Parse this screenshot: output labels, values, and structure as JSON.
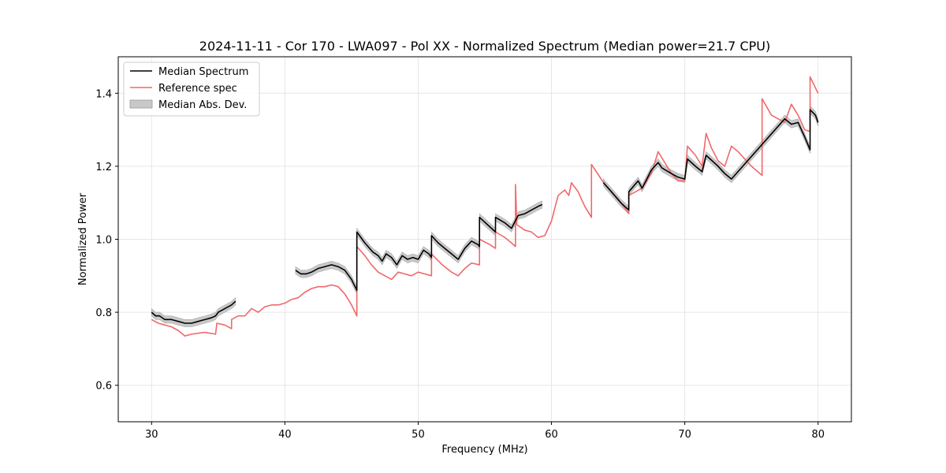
{
  "chart_data": {
    "type": "line",
    "title": "2024-11-11 - Cor 170 - LWA097 - Pol XX - Normalized Spectrum (Median power=21.7 CPU)",
    "xlabel": "Frequency (MHz)",
    "ylabel": "Normalized Power",
    "xlim": [
      27.5,
      82.5
    ],
    "ylim": [
      0.5,
      1.5
    ],
    "xticks": [
      30,
      40,
      50,
      60,
      70,
      80
    ],
    "yticks": [
      0.6,
      0.8,
      1.0,
      1.2,
      1.4
    ],
    "xtick_labels": [
      "30",
      "40",
      "50",
      "60",
      "70",
      "80"
    ],
    "ytick_labels": [
      "0.6",
      "0.8",
      "1.0",
      "1.2",
      "1.4"
    ],
    "grid": true,
    "legend_position": "top-left",
    "legend": [
      {
        "label": "Median Spectrum",
        "kind": "line",
        "color": "#000000"
      },
      {
        "label": "Reference spec",
        "kind": "line",
        "color": "#f0686c"
      },
      {
        "label": "Median Abs. Dev.",
        "kind": "band",
        "color": "#c8c8c8"
      }
    ],
    "series": [
      {
        "name": "Median Spectrum",
        "color": "#000000",
        "band_halfwidth": 0.01,
        "segments": [
          [
            [
              30.0,
              0.8
            ],
            [
              30.3,
              0.79
            ],
            [
              30.6,
              0.79
            ],
            [
              31.0,
              0.78
            ],
            [
              31.5,
              0.78
            ],
            [
              32.0,
              0.775
            ],
            [
              32.5,
              0.77
            ],
            [
              33.0,
              0.77
            ],
            [
              33.5,
              0.775
            ],
            [
              34.0,
              0.78
            ],
            [
              34.5,
              0.785
            ],
            [
              34.8,
              0.79
            ],
            [
              35.0,
              0.8
            ],
            [
              35.5,
              0.81
            ],
            [
              36.0,
              0.82
            ],
            [
              36.3,
              0.83
            ]
          ],
          [
            [
              40.8,
              0.915
            ],
            [
              41.2,
              0.905
            ],
            [
              41.6,
              0.905
            ],
            [
              42.0,
              0.91
            ],
            [
              42.5,
              0.92
            ],
            [
              43.0,
              0.925
            ],
            [
              43.5,
              0.93
            ],
            [
              44.0,
              0.925
            ],
            [
              44.5,
              0.915
            ],
            [
              45.0,
              0.89
            ],
            [
              45.4,
              0.86
            ],
            [
              45.4,
              1.02
            ],
            [
              46.0,
              0.99
            ],
            [
              46.6,
              0.965
            ],
            [
              47.0,
              0.955
            ],
            [
              47.3,
              0.94
            ],
            [
              47.6,
              0.96
            ],
            [
              48.0,
              0.95
            ],
            [
              48.4,
              0.93
            ],
            [
              48.8,
              0.955
            ],
            [
              49.2,
              0.945
            ],
            [
              49.6,
              0.95
            ],
            [
              50.0,
              0.945
            ],
            [
              50.4,
              0.97
            ],
            [
              50.8,
              0.96
            ],
            [
              51.0,
              0.95
            ],
            [
              51.0,
              1.01
            ],
            [
              51.5,
              0.99
            ],
            [
              52.0,
              0.975
            ],
            [
              52.5,
              0.96
            ],
            [
              53.0,
              0.945
            ],
            [
              53.5,
              0.975
            ],
            [
              54.0,
              0.995
            ],
            [
              54.5,
              0.985
            ],
            [
              54.6,
              0.98
            ],
            [
              54.6,
              1.06
            ],
            [
              55.2,
              1.04
            ],
            [
              55.8,
              1.02
            ],
            [
              55.8,
              1.06
            ],
            [
              56.5,
              1.045
            ],
            [
              57.0,
              1.03
            ],
            [
              57.5,
              1.065
            ],
            [
              58.0,
              1.07
            ],
            [
              58.5,
              1.08
            ],
            [
              59.0,
              1.09
            ],
            [
              59.3,
              1.095
            ]
          ],
          [
            [
              63.9,
              1.155
            ],
            [
              64.5,
              1.13
            ],
            [
              65.2,
              1.1
            ],
            [
              65.8,
              1.08
            ],
            [
              65.8,
              1.13
            ],
            [
              66.5,
              1.16
            ],
            [
              66.8,
              1.14
            ],
            [
              67.5,
              1.19
            ],
            [
              68.0,
              1.21
            ],
            [
              68.3,
              1.195
            ],
            [
              69.0,
              1.18
            ],
            [
              69.5,
              1.17
            ],
            [
              70.0,
              1.165
            ],
            [
              70.2,
              1.22
            ],
            [
              70.8,
              1.2
            ],
            [
              71.3,
              1.185
            ],
            [
              71.6,
              1.23
            ],
            [
              72.5,
              1.2
            ],
            [
              73.0,
              1.18
            ],
            [
              73.5,
              1.165
            ],
            [
              77.5,
              1.33
            ],
            [
              78.0,
              1.315
            ],
            [
              78.5,
              1.32
            ],
            [
              79.0,
              1.28
            ],
            [
              79.4,
              1.245
            ],
            [
              79.4,
              1.355
            ],
            [
              79.8,
              1.34
            ],
            [
              80.0,
              1.32
            ]
          ]
        ]
      },
      {
        "name": "Reference spec",
        "color": "#f0686c",
        "segments": [
          [
            [
              30.0,
              0.78
            ],
            [
              30.5,
              0.77
            ],
            [
              31.0,
              0.765
            ],
            [
              31.5,
              0.76
            ],
            [
              32.0,
              0.75
            ],
            [
              32.5,
              0.735
            ],
            [
              33.0,
              0.74
            ],
            [
              34.0,
              0.745
            ],
            [
              34.8,
              0.74
            ],
            [
              34.9,
              0.77
            ],
            [
              35.5,
              0.765
            ],
            [
              36.0,
              0.755
            ],
            [
              36.0,
              0.78
            ],
            [
              36.5,
              0.79
            ],
            [
              37.0,
              0.79
            ],
            [
              37.5,
              0.81
            ],
            [
              38.0,
              0.8
            ],
            [
              38.5,
              0.815
            ],
            [
              39.0,
              0.82
            ],
            [
              39.5,
              0.82
            ],
            [
              40.0,
              0.825
            ],
            [
              40.5,
              0.835
            ],
            [
              41.0,
              0.84
            ],
            [
              41.5,
              0.855
            ],
            [
              42.0,
              0.865
            ],
            [
              42.5,
              0.87
            ],
            [
              43.0,
              0.87
            ],
            [
              43.5,
              0.875
            ],
            [
              44.0,
              0.87
            ],
            [
              44.5,
              0.85
            ],
            [
              45.0,
              0.82
            ],
            [
              45.4,
              0.79
            ],
            [
              45.4,
              0.98
            ],
            [
              46.0,
              0.955
            ],
            [
              46.5,
              0.93
            ],
            [
              47.0,
              0.91
            ],
            [
              47.5,
              0.9
            ],
            [
              48.0,
              0.89
            ],
            [
              48.5,
              0.91
            ],
            [
              49.0,
              0.905
            ],
            [
              49.5,
              0.9
            ],
            [
              50.0,
              0.91
            ],
            [
              50.5,
              0.905
            ],
            [
              51.0,
              0.9
            ],
            [
              51.0,
              0.96
            ],
            [
              51.8,
              0.93
            ],
            [
              52.5,
              0.91
            ],
            [
              53.0,
              0.9
            ],
            [
              53.5,
              0.92
            ],
            [
              54.0,
              0.935
            ],
            [
              54.6,
              0.93
            ],
            [
              54.6,
              1.0
            ],
            [
              55.4,
              0.985
            ],
            [
              55.8,
              0.975
            ],
            [
              55.8,
              1.02
            ],
            [
              56.5,
              1.005
            ],
            [
              57.0,
              0.99
            ],
            [
              57.3,
              0.98
            ],
            [
              57.3,
              1.15
            ],
            [
              57.4,
              1.04
            ],
            [
              58.0,
              1.025
            ],
            [
              58.5,
              1.02
            ],
            [
              59.0,
              1.005
            ],
            [
              59.5,
              1.01
            ],
            [
              60.0,
              1.05
            ],
            [
              60.5,
              1.12
            ],
            [
              61.0,
              1.135
            ],
            [
              61.3,
              1.12
            ],
            [
              61.5,
              1.155
            ],
            [
              62.0,
              1.13
            ],
            [
              62.5,
              1.09
            ],
            [
              63.0,
              1.06
            ],
            [
              63.0,
              1.205
            ],
            [
              64.0,
              1.15
            ],
            [
              65.0,
              1.11
            ],
            [
              65.8,
              1.07
            ],
            [
              65.8,
              1.12
            ],
            [
              66.8,
              1.14
            ],
            [
              67.5,
              1.18
            ],
            [
              68.0,
              1.24
            ],
            [
              68.5,
              1.21
            ],
            [
              69.0,
              1.18
            ],
            [
              69.5,
              1.16
            ],
            [
              70.0,
              1.16
            ],
            [
              70.2,
              1.255
            ],
            [
              70.8,
              1.23
            ],
            [
              71.3,
              1.2
            ],
            [
              71.6,
              1.29
            ],
            [
              72.0,
              1.25
            ],
            [
              72.5,
              1.215
            ],
            [
              73.0,
              1.2
            ],
            [
              73.5,
              1.255
            ],
            [
              74.0,
              1.24
            ],
            [
              75.0,
              1.2
            ],
            [
              75.8,
              1.175
            ],
            [
              75.8,
              1.385
            ],
            [
              76.5,
              1.34
            ],
            [
              77.5,
              1.32
            ],
            [
              78.0,
              1.37
            ],
            [
              78.5,
              1.34
            ],
            [
              79.0,
              1.3
            ],
            [
              79.4,
              1.295
            ],
            [
              79.4,
              1.445
            ],
            [
              80.0,
              1.4
            ]
          ]
        ]
      }
    ]
  }
}
